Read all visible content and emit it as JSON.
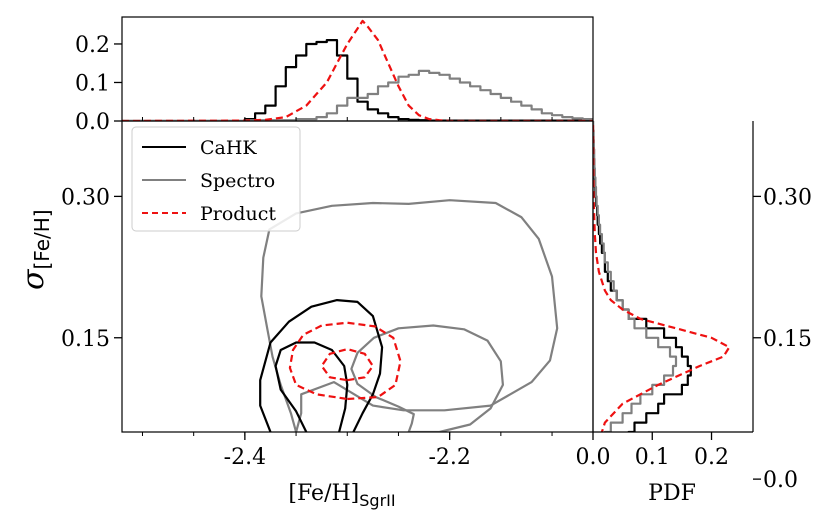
{
  "chart_data": {
    "type": "line",
    "title": "",
    "colors": {
      "cahk": "#000000",
      "spectro": "#808080",
      "product": "#ee1111",
      "legend_frame": "#cccccc"
    },
    "legend": {
      "placement": "top-left",
      "entries": [
        {
          "key": "cahk",
          "label": "CaHK",
          "style": "solid"
        },
        {
          "key": "spectro",
          "label": "Spectro",
          "style": "solid"
        },
        {
          "key": "product",
          "label": "Product",
          "style": "dashed"
        }
      ]
    },
    "main": {
      "xlabel": "[Fe/H]",
      "xlabel_sub": "SgrII",
      "ylabel": "σ",
      "ylabel_sub": "[Fe/H]",
      "xlim": [
        -2.52,
        -2.06
      ],
      "ylim": [
        0.05,
        0.38
      ],
      "xticks": [
        -2.4,
        -2.2
      ],
      "xtick_labels": [
        "-2.4",
        "-2.2"
      ],
      "yticks": [
        0.15,
        0.3
      ],
      "ytick_labels": [
        "0.15",
        "0.30"
      ],
      "contours": [
        {
          "series": "spectro",
          "points": [
            [
              -2.24,
              0.05
            ],
            [
              -2.21,
              0.05
            ],
            [
              -2.18,
              0.058
            ],
            [
              -2.16,
              0.075
            ],
            [
              -2.148,
              0.1
            ],
            [
              -2.15,
              0.125
            ],
            [
              -2.163,
              0.147
            ],
            [
              -2.186,
              0.159
            ],
            [
              -2.216,
              0.163
            ],
            [
              -2.25,
              0.16
            ],
            [
              -2.274,
              0.15
            ],
            [
              -2.29,
              0.134
            ],
            [
              -2.296,
              0.117
            ],
            [
              -2.29,
              0.101
            ],
            [
              -2.272,
              0.087
            ],
            [
              -2.25,
              0.077
            ],
            [
              -2.235,
              0.069
            ],
            [
              -2.237,
              0.059
            ],
            [
              -2.24,
              0.05
            ]
          ]
        },
        {
          "series": "spectro",
          "points": [
            [
              -2.35,
              0.05
            ],
            [
              -2.345,
              0.07
            ],
            [
              -2.345,
              0.09
            ],
            [
              -2.313,
              0.103
            ],
            [
              -2.275,
              0.078
            ],
            [
              -2.245,
              0.073
            ],
            [
              -2.205,
              0.073
            ],
            [
              -2.16,
              0.078
            ],
            [
              -2.12,
              0.103
            ],
            [
              -2.102,
              0.126
            ],
            [
              -2.095,
              0.16
            ],
            [
              -2.1,
              0.215
            ],
            [
              -2.113,
              0.255
            ],
            [
              -2.13,
              0.278
            ],
            [
              -2.155,
              0.293
            ],
            [
              -2.2,
              0.296
            ],
            [
              -2.24,
              0.292
            ],
            [
              -2.275,
              0.293
            ],
            [
              -2.315,
              0.29
            ],
            [
              -2.35,
              0.282
            ],
            [
              -2.376,
              0.265
            ],
            [
              -2.382,
              0.235
            ],
            [
              -2.384,
              0.194
            ],
            [
              -2.378,
              0.159
            ],
            [
              -2.373,
              0.13
            ],
            [
              -2.365,
              0.1
            ],
            [
              -2.355,
              0.07
            ],
            [
              -2.35,
              0.05
            ]
          ]
        },
        {
          "series": "cahk",
          "points": [
            [
              -2.375,
              0.05
            ],
            [
              -2.385,
              0.078
            ],
            [
              -2.385,
              0.105
            ],
            [
              -2.375,
              0.145
            ],
            [
              -2.357,
              0.167
            ],
            [
              -2.335,
              0.183
            ],
            [
              -2.31,
              0.19
            ],
            [
              -2.29,
              0.188
            ],
            [
              -2.275,
              0.173
            ],
            [
              -2.266,
              0.14
            ],
            [
              -2.268,
              0.112
            ],
            [
              -2.275,
              0.09
            ],
            [
              -2.285,
              0.07
            ],
            [
              -2.294,
              0.05
            ]
          ]
        },
        {
          "series": "cahk",
          "points": [
            [
              -2.34,
              0.05
            ],
            [
              -2.35,
              0.072
            ],
            [
              -2.365,
              0.095
            ],
            [
              -2.37,
              0.12
            ],
            [
              -2.365,
              0.137
            ],
            [
              -2.35,
              0.145
            ],
            [
              -2.332,
              0.145
            ],
            [
              -2.315,
              0.137
            ],
            [
              -2.303,
              0.12
            ],
            [
              -2.3,
              0.1
            ],
            [
              -2.302,
              0.075
            ],
            [
              -2.308,
              0.05
            ]
          ]
        },
        {
          "series": "product",
          "points": [
            [
              -2.3,
              0.085
            ],
            [
              -2.27,
              0.087
            ],
            [
              -2.253,
              0.1
            ],
            [
              -2.248,
              0.125
            ],
            [
              -2.255,
              0.15
            ],
            [
              -2.273,
              0.162
            ],
            [
              -2.3,
              0.166
            ],
            [
              -2.325,
              0.163
            ],
            [
              -2.343,
              0.153
            ],
            [
              -2.353,
              0.137
            ],
            [
              -2.356,
              0.118
            ],
            [
              -2.35,
              0.1
            ],
            [
              -2.33,
              0.09
            ],
            [
              -2.3,
              0.085
            ]
          ]
        },
        {
          "series": "product",
          "points": [
            [
              -2.3,
              0.105
            ],
            [
              -2.283,
              0.108
            ],
            [
              -2.275,
              0.12
            ],
            [
              -2.283,
              0.133
            ],
            [
              -2.3,
              0.138
            ],
            [
              -2.317,
              0.133
            ],
            [
              -2.325,
              0.12
            ],
            [
              -2.317,
              0.108
            ],
            [
              -2.3,
              0.105
            ]
          ]
        }
      ]
    },
    "top": {
      "ylim": [
        0,
        0.27
      ],
      "yticks": [
        0.0,
        0.1,
        0.2
      ],
      "ytick_labels": [
        "0.0",
        "0.1",
        "0.2"
      ],
      "series": [
        {
          "name": "CaHK",
          "key": "cahk",
          "style": "step",
          "x": [
            -2.52,
            -2.4,
            -2.39,
            -2.38,
            -2.37,
            -2.36,
            -2.35,
            -2.34,
            -2.33,
            -2.32,
            -2.31,
            -2.3,
            -2.29,
            -2.28,
            -2.27,
            -2.26,
            -2.25,
            -2.24,
            -2.23,
            -2.22,
            -2.06
          ],
          "y": [
            0,
            0.005,
            0.02,
            0.04,
            0.09,
            0.14,
            0.17,
            0.2,
            0.205,
            0.21,
            0.17,
            0.11,
            0.05,
            0.03,
            0.02,
            0.01,
            0.005,
            0.003,
            0.002,
            0.001,
            0.0
          ]
        },
        {
          "name": "Spectro",
          "key": "spectro",
          "style": "step",
          "x": [
            -2.52,
            -2.4,
            -2.35,
            -2.33,
            -2.32,
            -2.31,
            -2.3,
            -2.29,
            -2.28,
            -2.27,
            -2.26,
            -2.25,
            -2.24,
            -2.23,
            -2.22,
            -2.21,
            -2.2,
            -2.19,
            -2.18,
            -2.17,
            -2.16,
            -2.15,
            -2.14,
            -2.13,
            -2.12,
            -2.11,
            -2.1,
            -2.09,
            -2.08,
            -2.07,
            -2.06
          ],
          "y": [
            0,
            0.002,
            0.005,
            0.01,
            0.02,
            0.04,
            0.06,
            0.06,
            0.07,
            0.09,
            0.1,
            0.115,
            0.12,
            0.13,
            0.125,
            0.12,
            0.11,
            0.1,
            0.09,
            0.08,
            0.07,
            0.06,
            0.05,
            0.04,
            0.03,
            0.02,
            0.015,
            0.01,
            0.007,
            0.005,
            0.003
          ]
        },
        {
          "name": "Product",
          "key": "product",
          "style": "dashed",
          "x": [
            -2.52,
            -2.4,
            -2.38,
            -2.36,
            -2.34,
            -2.33,
            -2.32,
            -2.31,
            -2.3,
            -2.29,
            -2.285,
            -2.28,
            -2.27,
            -2.26,
            -2.25,
            -2.24,
            -2.23,
            -2.22,
            -2.21,
            -2.2,
            -2.06
          ],
          "y": [
            0,
            0.001,
            0.003,
            0.01,
            0.04,
            0.07,
            0.1,
            0.15,
            0.2,
            0.24,
            0.26,
            0.245,
            0.21,
            0.15,
            0.09,
            0.04,
            0.015,
            0.005,
            0.002,
            0.0,
            0.0
          ]
        }
      ]
    },
    "right": {
      "xlabel": "PDF",
      "xlim": [
        0,
        0.27
      ],
      "xticks": [
        0.0,
        0.1,
        0.2
      ],
      "xtick_labels": [
        "0.0",
        "0.1",
        "0.2"
      ],
      "yticks": [
        0.0,
        0.15,
        0.3
      ],
      "ytick_labels": [
        "0.0",
        "0.15",
        "0.30"
      ],
      "series": [
        {
          "name": "CaHK",
          "key": "cahk",
          "style": "step",
          "y": [
            0.0,
            0.01,
            0.02,
            0.03,
            0.04,
            0.05,
            0.06,
            0.07,
            0.08,
            0.09,
            0.1,
            0.11,
            0.12,
            0.13,
            0.14,
            0.15,
            0.16,
            0.17,
            0.18,
            0.19,
            0.2,
            0.21,
            0.22,
            0.23,
            0.24,
            0.25,
            0.26,
            0.27,
            0.28,
            0.29,
            0.3,
            0.31,
            0.32,
            0.33,
            0.34,
            0.35,
            0.36,
            0.37,
            0.38
          ],
          "x": [
            0.01,
            0.02,
            0.03,
            0.04,
            0.06,
            0.07,
            0.09,
            0.11,
            0.12,
            0.15,
            0.16,
            0.165,
            0.16,
            0.15,
            0.14,
            0.12,
            0.09,
            0.06,
            0.05,
            0.04,
            0.03,
            0.025,
            0.02,
            0.02,
            0.015,
            0.012,
            0.01,
            0.008,
            0.007,
            0.005,
            0.004,
            0.003,
            0.002,
            0.002,
            0.001,
            0.001,
            0.0,
            0.0,
            0.0
          ]
        },
        {
          "name": "Spectro",
          "key": "spectro",
          "style": "step",
          "y": [
            0.0,
            0.01,
            0.02,
            0.03,
            0.04,
            0.05,
            0.06,
            0.07,
            0.08,
            0.09,
            0.1,
            0.11,
            0.12,
            0.13,
            0.14,
            0.15,
            0.16,
            0.17,
            0.18,
            0.19,
            0.2,
            0.21,
            0.22,
            0.23,
            0.24,
            0.25,
            0.26,
            0.27,
            0.28,
            0.29,
            0.3,
            0.31,
            0.32,
            0.33,
            0.34,
            0.35,
            0.36,
            0.37,
            0.38
          ],
          "x": [
            0.003,
            0.005,
            0.008,
            0.012,
            0.02,
            0.03,
            0.05,
            0.065,
            0.08,
            0.1,
            0.12,
            0.135,
            0.14,
            0.13,
            0.11,
            0.09,
            0.07,
            0.06,
            0.05,
            0.04,
            0.035,
            0.03,
            0.025,
            0.02,
            0.018,
            0.015,
            0.012,
            0.01,
            0.008,
            0.006,
            0.005,
            0.004,
            0.003,
            0.002,
            0.002,
            0.001,
            0.001,
            0.0,
            0.0
          ]
        },
        {
          "name": "Product",
          "key": "product",
          "style": "dashed",
          "y": [
            0.0,
            0.02,
            0.04,
            0.06,
            0.08,
            0.1,
            0.12,
            0.13,
            0.14,
            0.15,
            0.16,
            0.17,
            0.18,
            0.19,
            0.2,
            0.22,
            0.24,
            0.26,
            0.3,
            0.38
          ],
          "x": [
            0.0,
            0.005,
            0.01,
            0.02,
            0.05,
            0.11,
            0.18,
            0.22,
            0.23,
            0.2,
            0.14,
            0.08,
            0.05,
            0.03,
            0.02,
            0.01,
            0.005,
            0.003,
            0.001,
            0.0
          ]
        }
      ]
    }
  }
}
